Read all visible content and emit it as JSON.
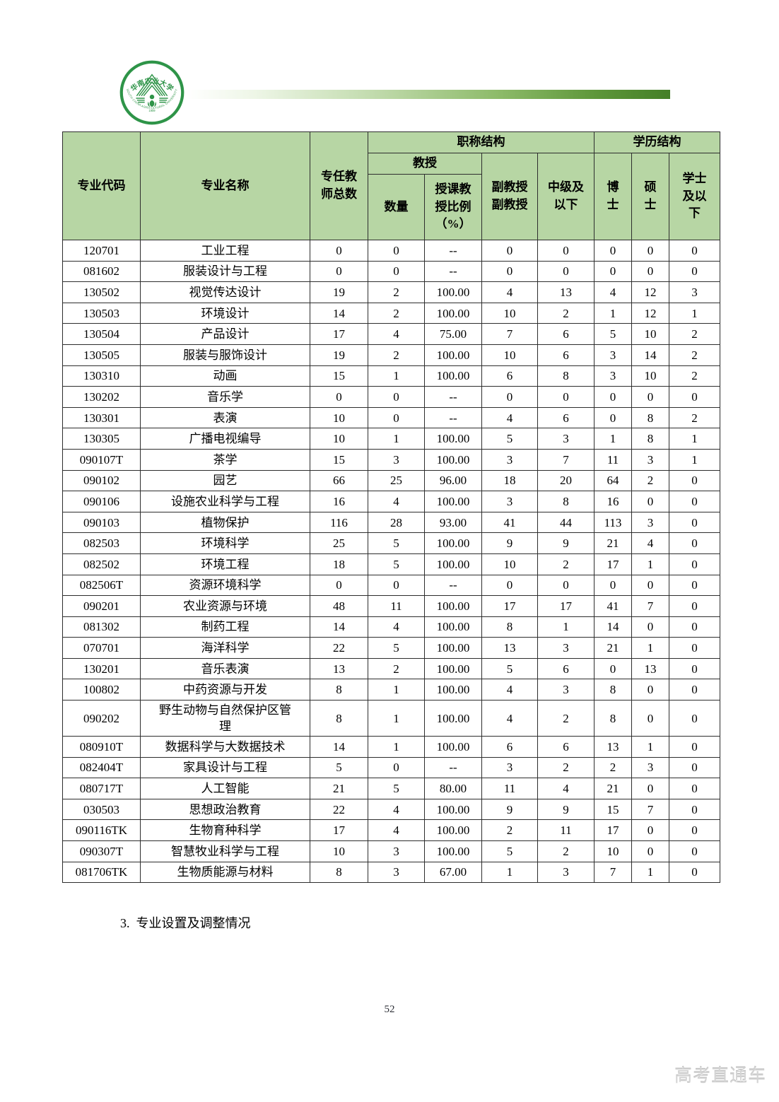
{
  "logo": {
    "top_text": "华南农业大学",
    "bottom_arc_text": "SOUTH CHINA AGRICULTURAL UNIVERSITY",
    "year": "1909",
    "color": "#2e9448"
  },
  "section_heading": "3.  专业设置及调整情况",
  "page_number": "52",
  "watermark": "高考直通车",
  "colors": {
    "header_bg": "#b7d6a4",
    "table_border": "#2d2d2d",
    "bar_green_end": "#447f27",
    "logo_green": "#2e9448"
  },
  "table": {
    "header": {
      "major_code": "专业代码",
      "major_name": "专业名称",
      "full_time_total": "专任教\n师总数",
      "title_structure": "职称结构",
      "professor": "教授",
      "prof_count": "数量",
      "prof_ratio": "授课教\n授比例\n（%）",
      "assoc_prof": "副教授\n副教授",
      "intermediate": "中级及\n以下",
      "edu_structure": "学历结构",
      "doctor": "博\n士",
      "master": "硕\n士",
      "bachelor": "学士\n及以\n下"
    },
    "rows": [
      [
        "120701",
        "工业工程",
        "0",
        "0",
        "--",
        "0",
        "0",
        "0",
        "0",
        "0"
      ],
      [
        "081602",
        "服装设计与工程",
        "0",
        "0",
        "--",
        "0",
        "0",
        "0",
        "0",
        "0"
      ],
      [
        "130502",
        "视觉传达设计",
        "19",
        "2",
        "100.00",
        "4",
        "13",
        "4",
        "12",
        "3"
      ],
      [
        "130503",
        "环境设计",
        "14",
        "2",
        "100.00",
        "10",
        "2",
        "1",
        "12",
        "1"
      ],
      [
        "130504",
        "产品设计",
        "17",
        "4",
        "75.00",
        "7",
        "6",
        "5",
        "10",
        "2"
      ],
      [
        "130505",
        "服装与服饰设计",
        "19",
        "2",
        "100.00",
        "10",
        "6",
        "3",
        "14",
        "2"
      ],
      [
        "130310",
        "动画",
        "15",
        "1",
        "100.00",
        "6",
        "8",
        "3",
        "10",
        "2"
      ],
      [
        "130202",
        "音乐学",
        "0",
        "0",
        "--",
        "0",
        "0",
        "0",
        "0",
        "0"
      ],
      [
        "130301",
        "表演",
        "10",
        "0",
        "--",
        "4",
        "6",
        "0",
        "8",
        "2"
      ],
      [
        "130305",
        "广播电视编导",
        "10",
        "1",
        "100.00",
        "5",
        "3",
        "1",
        "8",
        "1"
      ],
      [
        "090107T",
        "茶学",
        "15",
        "3",
        "100.00",
        "3",
        "7",
        "11",
        "3",
        "1"
      ],
      [
        "090102",
        "园艺",
        "66",
        "25",
        "96.00",
        "18",
        "20",
        "64",
        "2",
        "0"
      ],
      [
        "090106",
        "设施农业科学与工程",
        "16",
        "4",
        "100.00",
        "3",
        "8",
        "16",
        "0",
        "0"
      ],
      [
        "090103",
        "植物保护",
        "116",
        "28",
        "93.00",
        "41",
        "44",
        "113",
        "3",
        "0"
      ],
      [
        "082503",
        "环境科学",
        "25",
        "5",
        "100.00",
        "9",
        "9",
        "21",
        "4",
        "0"
      ],
      [
        "082502",
        "环境工程",
        "18",
        "5",
        "100.00",
        "10",
        "2",
        "17",
        "1",
        "0"
      ],
      [
        "082506T",
        "资源环境科学",
        "0",
        "0",
        "--",
        "0",
        "0",
        "0",
        "0",
        "0"
      ],
      [
        "090201",
        "农业资源与环境",
        "48",
        "11",
        "100.00",
        "17",
        "17",
        "41",
        "7",
        "0"
      ],
      [
        "081302",
        "制药工程",
        "14",
        "4",
        "100.00",
        "8",
        "1",
        "14",
        "0",
        "0"
      ],
      [
        "070701",
        "海洋科学",
        "22",
        "5",
        "100.00",
        "13",
        "3",
        "21",
        "1",
        "0"
      ],
      [
        "130201",
        "音乐表演",
        "13",
        "2",
        "100.00",
        "5",
        "6",
        "0",
        "13",
        "0"
      ],
      [
        "100802",
        "中药资源与开发",
        "8",
        "1",
        "100.00",
        "4",
        "3",
        "8",
        "0",
        "0"
      ],
      [
        "090202",
        "野生动物与自然保护区管理",
        "8",
        "1",
        "100.00",
        "4",
        "2",
        "8",
        "0",
        "0"
      ],
      [
        "080910T",
        "数据科学与大数据技术",
        "14",
        "1",
        "100.00",
        "6",
        "6",
        "13",
        "1",
        "0"
      ],
      [
        "082404T",
        "家具设计与工程",
        "5",
        "0",
        "--",
        "3",
        "2",
        "2",
        "3",
        "0"
      ],
      [
        "080717T",
        "人工智能",
        "21",
        "5",
        "80.00",
        "11",
        "4",
        "21",
        "0",
        "0"
      ],
      [
        "030503",
        "思想政治教育",
        "22",
        "4",
        "100.00",
        "9",
        "9",
        "15",
        "7",
        "0"
      ],
      [
        "090116TK",
        "生物育种科学",
        "17",
        "4",
        "100.00",
        "2",
        "11",
        "17",
        "0",
        "0"
      ],
      [
        "090307T",
        "智慧牧业科学与工程",
        "10",
        "3",
        "100.00",
        "5",
        "2",
        "10",
        "0",
        "0"
      ],
      [
        "081706TK",
        "生物质能源与材料",
        "8",
        "3",
        "67.00",
        "1",
        "3",
        "7",
        "1",
        "0"
      ]
    ]
  }
}
